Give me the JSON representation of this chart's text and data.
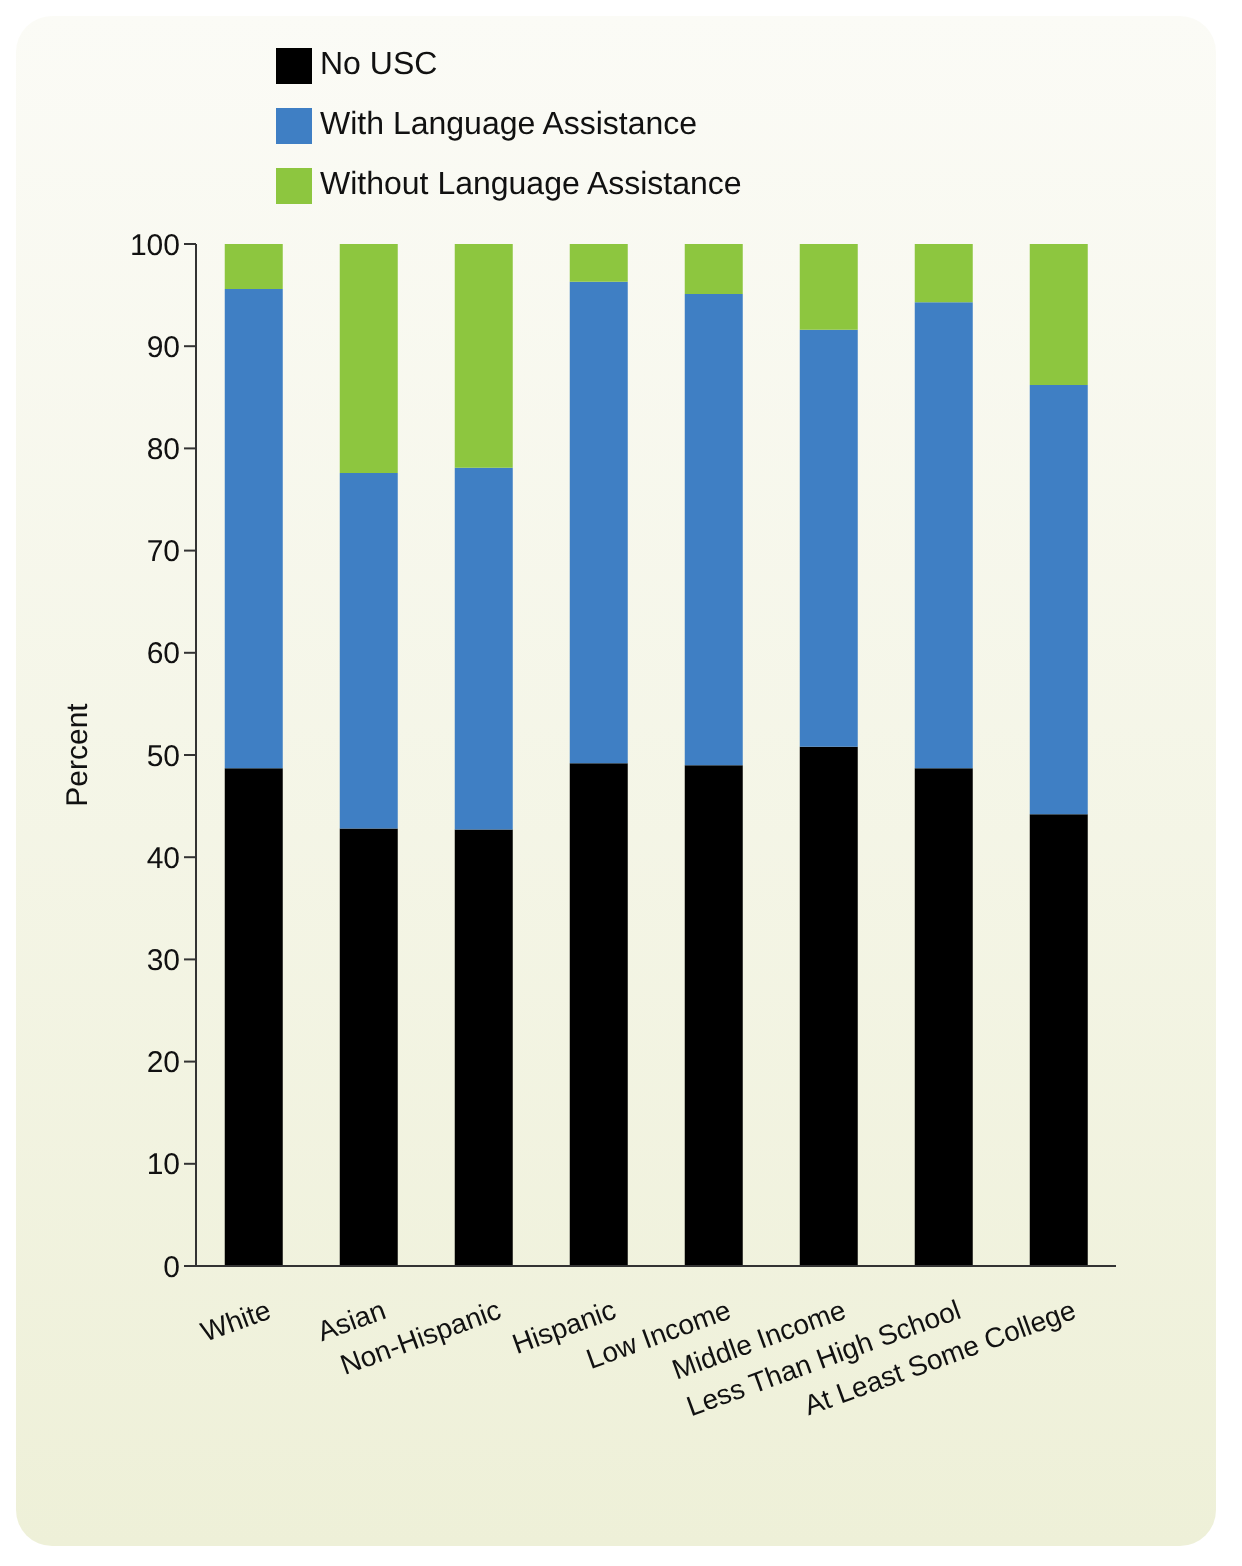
{
  "chart_data": {
    "type": "bar",
    "stacked": true,
    "ylabel": "Percent",
    "categories": [
      "White",
      "Asian",
      "Non-Hispanic",
      "Hispanic",
      "Low Income",
      "Middle Income",
      "Less Than High School",
      "At Least Some College"
    ],
    "series": [
      {
        "name": "No USC",
        "color": "#000000",
        "values": [
          48.7,
          42.8,
          42.7,
          49.2,
          49.0,
          50.8,
          48.7,
          44.2
        ]
      },
      {
        "name": "With Language Assistance",
        "color": "#3f7fc4",
        "values": [
          46.9,
          34.8,
          35.4,
          47.1,
          46.1,
          40.8,
          45.6,
          42.0
        ]
      },
      {
        "name": "Without Language Assistance",
        "color": "#8dc63f",
        "values": [
          4.4,
          22.4,
          21.9,
          3.7,
          4.9,
          8.4,
          5.7,
          13.8
        ]
      }
    ],
    "ylim": [
      0,
      100
    ],
    "yticks": [
      0,
      10,
      20,
      30,
      40,
      50,
      60,
      70,
      80,
      90,
      100
    ],
    "grid": false,
    "legend": "top left"
  }
}
